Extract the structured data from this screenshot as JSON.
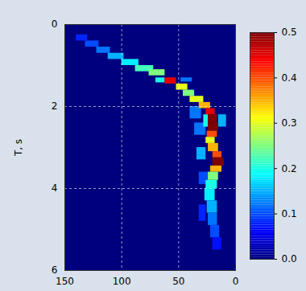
{
  "chart_data": {
    "type": "heatmap",
    "ylabel": "T, s",
    "xlim": [
      150,
      0
    ],
    "xticks": [
      150,
      100,
      50,
      0
    ],
    "ylim": [
      0,
      6
    ],
    "yticks": [
      0,
      2,
      4,
      6
    ],
    "grid": true,
    "cells": [
      {
        "x1": 130,
        "x2": 140,
        "y1": 0.25,
        "y2": 0.4,
        "value": 0.08
      },
      {
        "x1": 120,
        "x2": 132,
        "y1": 0.4,
        "y2": 0.55,
        "value": 0.1
      },
      {
        "x1": 110,
        "x2": 122,
        "y1": 0.55,
        "y2": 0.7,
        "value": 0.12
      },
      {
        "x1": 98,
        "x2": 112,
        "y1": 0.7,
        "y2": 0.85,
        "value": 0.15
      },
      {
        "x1": 85,
        "x2": 100,
        "y1": 0.85,
        "y2": 1.0,
        "value": 0.18
      },
      {
        "x1": 72,
        "x2": 88,
        "y1": 1.0,
        "y2": 1.15,
        "value": 0.22
      },
      {
        "x1": 62,
        "x2": 76,
        "y1": 1.1,
        "y2": 1.25,
        "value": 0.25
      },
      {
        "x1": 62,
        "x2": 70,
        "y1": 1.3,
        "y2": 1.42,
        "value": 0.2
      },
      {
        "x1": 38,
        "x2": 48,
        "y1": 1.3,
        "y2": 1.4,
        "value": 0.12
      },
      {
        "x1": 52,
        "x2": 62,
        "y1": 1.3,
        "y2": 1.45,
        "value": 0.45
      },
      {
        "x1": 42,
        "x2": 52,
        "y1": 1.45,
        "y2": 1.6,
        "value": 0.3
      },
      {
        "x1": 36,
        "x2": 46,
        "y1": 1.6,
        "y2": 1.75,
        "value": 0.25
      },
      {
        "x1": 28,
        "x2": 40,
        "y1": 1.75,
        "y2": 1.9,
        "value": 0.3
      },
      {
        "x1": 30,
        "x2": 40,
        "y1": 2.0,
        "y2": 2.3,
        "value": 0.12
      },
      {
        "x1": 26,
        "x2": 36,
        "y1": 2.4,
        "y2": 2.7,
        "value": 0.12
      },
      {
        "x1": 26,
        "x2": 34,
        "y1": 3.0,
        "y2": 3.3,
        "value": 0.15
      },
      {
        "x1": 24,
        "x2": 32,
        "y1": 3.6,
        "y2": 3.9,
        "value": 0.1
      },
      {
        "x1": 8,
        "x2": 15,
        "y1": 2.2,
        "y2": 2.5,
        "value": 0.15
      },
      {
        "x1": 26,
        "x2": 32,
        "y1": 4.4,
        "y2": 4.8,
        "value": 0.08
      },
      {
        "x1": 24,
        "x2": 28,
        "y1": 2.2,
        "y2": 2.5,
        "value": 0.2
      },
      {
        "x1": 22,
        "x2": 32,
        "y1": 1.9,
        "y2": 2.05,
        "value": 0.35
      },
      {
        "x1": 18,
        "x2": 26,
        "y1": 2.05,
        "y2": 2.2,
        "value": 0.45
      },
      {
        "x1": 16,
        "x2": 24,
        "y1": 2.2,
        "y2": 2.4,
        "value": 0.5
      },
      {
        "x1": 15,
        "x2": 24,
        "y1": 2.4,
        "y2": 2.6,
        "value": 0.5
      },
      {
        "x1": 16,
        "x2": 25,
        "y1": 2.6,
        "y2": 2.75,
        "value": 0.4
      },
      {
        "x1": 18,
        "x2": 26,
        "y1": 2.75,
        "y2": 2.9,
        "value": 0.3
      },
      {
        "x1": 15,
        "x2": 24,
        "y1": 2.9,
        "y2": 3.1,
        "value": 0.35
      },
      {
        "x1": 12,
        "x2": 20,
        "y1": 3.1,
        "y2": 3.25,
        "value": 0.4
      },
      {
        "x1": 10,
        "x2": 20,
        "y1": 3.25,
        "y2": 3.45,
        "value": 0.5
      },
      {
        "x1": 12,
        "x2": 22,
        "y1": 3.45,
        "y2": 3.6,
        "value": 0.35
      },
      {
        "x1": 15,
        "x2": 24,
        "y1": 3.6,
        "y2": 3.8,
        "value": 0.25
      },
      {
        "x1": 16,
        "x2": 26,
        "y1": 3.8,
        "y2": 4.0,
        "value": 0.2
      },
      {
        "x1": 18,
        "x2": 27,
        "y1": 4.0,
        "y2": 4.3,
        "value": 0.18
      },
      {
        "x1": 16,
        "x2": 25,
        "y1": 4.3,
        "y2": 4.6,
        "value": 0.15
      },
      {
        "x1": 16,
        "x2": 24,
        "y1": 4.6,
        "y2": 4.9,
        "value": 0.12
      },
      {
        "x1": 14,
        "x2": 22,
        "y1": 4.9,
        "y2": 5.2,
        "value": 0.1
      },
      {
        "x1": 12,
        "x2": 20,
        "y1": 5.2,
        "y2": 5.5,
        "value": 0.07
      }
    ],
    "colorbar_range": [
      0,
      0.5
    ],
    "colorbar_ticks": [
      {
        "value": 0,
        "label": "0.0"
      },
      0.1,
      0.2,
      0.3,
      0.4,
      0.5
    ]
  }
}
